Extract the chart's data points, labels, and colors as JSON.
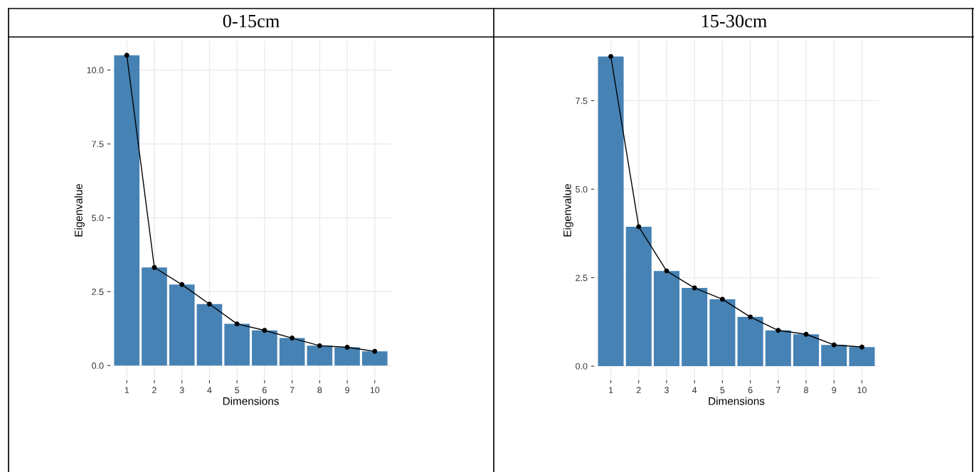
{
  "chart_data": [
    {
      "type": "bar",
      "title": "0-15cm",
      "xlabel": "Dimensions",
      "ylabel": "Eigenvalue",
      "categories": [
        "1",
        "2",
        "3",
        "4",
        "5",
        "6",
        "7",
        "8",
        "9",
        "10"
      ],
      "series": [
        {
          "color": "#4682b4",
          "values": [
            10.5,
            3.32,
            2.74,
            2.08,
            1.41,
            1.19,
            0.93,
            0.67,
            0.62,
            0.48
          ]
        },
        {
          "type": "line",
          "color": "#000000",
          "values": [
            10.5,
            3.32,
            2.74,
            2.08,
            1.41,
            1.19,
            0.93,
            0.67,
            0.62,
            0.48
          ]
        }
      ],
      "ylim": [
        -0.5,
        11.0
      ],
      "yticks": [
        {
          "value": 0,
          "label": "0.0"
        },
        {
          "value": 2.5,
          "label": "2.5"
        },
        {
          "value": 5,
          "label": "5.0"
        },
        {
          "value": 7.5,
          "label": "7.5"
        },
        {
          "value": 10,
          "label": "10.0"
        }
      ],
      "grid": true,
      "marker": "circle",
      "line_style": "solid"
    },
    {
      "type": "bar",
      "title": "15-30cm",
      "xlabel": "Dimensions",
      "ylabel": "Eigenvalue",
      "categories": [
        "1",
        "2",
        "3",
        "4",
        "5",
        "6",
        "7",
        "8",
        "9",
        "10"
      ],
      "series": [
        {
          "color": "#4682b4",
          "values": [
            8.75,
            3.94,
            2.69,
            2.21,
            1.89,
            1.39,
            1.01,
            0.9,
            0.6,
            0.54
          ]
        },
        {
          "type": "line",
          "color": "#000000",
          "values": [
            8.75,
            3.94,
            2.69,
            2.21,
            1.89,
            1.39,
            1.01,
            0.9,
            0.6,
            0.54
          ]
        }
      ],
      "ylim": [
        -0.4,
        9.2
      ],
      "yticks": [
        {
          "value": 0,
          "label": "0.0"
        },
        {
          "value": 2.5,
          "label": "2.5"
        },
        {
          "value": 5,
          "label": "5.0"
        },
        {
          "value": 7.5,
          "label": "7.5"
        }
      ],
      "grid": true,
      "marker": "circle",
      "line_style": "solid"
    }
  ]
}
